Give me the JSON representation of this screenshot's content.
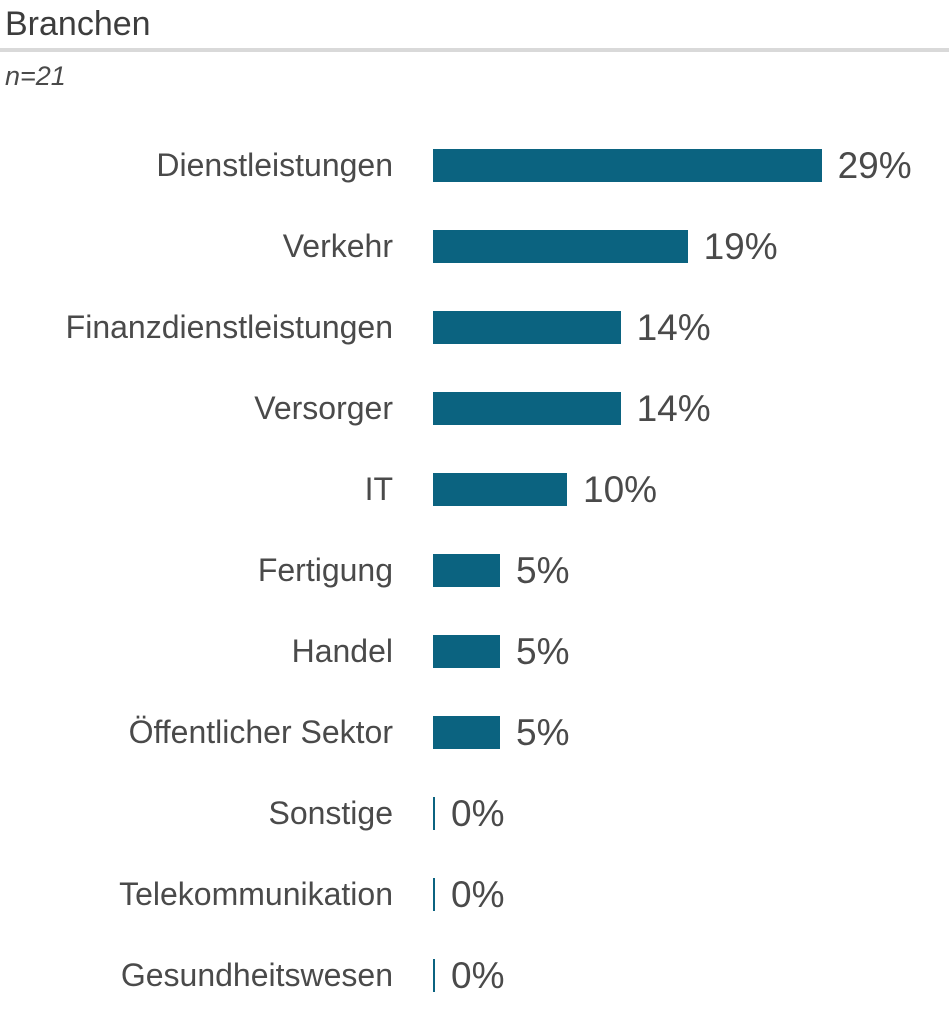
{
  "header": {
    "title": "Branchen",
    "subtitle": "n=21"
  },
  "colors": {
    "bar": "#0b6380",
    "text": "#4a4a4a",
    "divider": "#d9d9d9"
  },
  "chart_data": {
    "type": "bar",
    "orientation": "horizontal",
    "title": "Branchen",
    "subtitle": "n=21",
    "sample_size": 21,
    "unit": "%",
    "xlim": [
      0,
      30
    ],
    "grid": false,
    "legend": false,
    "bar_color": "#0b6380",
    "categories": [
      "Dienstleistungen",
      "Verkehr",
      "Finanzdienstleistungen",
      "Versorger",
      "IT",
      "Fertigung",
      "Handel",
      "Öffentlicher Sektor",
      "Sonstige",
      "Telekommunikation",
      "Gesundheitswesen"
    ],
    "values": [
      29,
      19,
      14,
      14,
      10,
      5,
      5,
      5,
      0,
      0,
      0
    ],
    "value_labels": [
      "29%",
      "19%",
      "14%",
      "14%",
      "10%",
      "5%",
      "5%",
      "5%",
      "0%",
      "0%",
      "0%"
    ]
  }
}
